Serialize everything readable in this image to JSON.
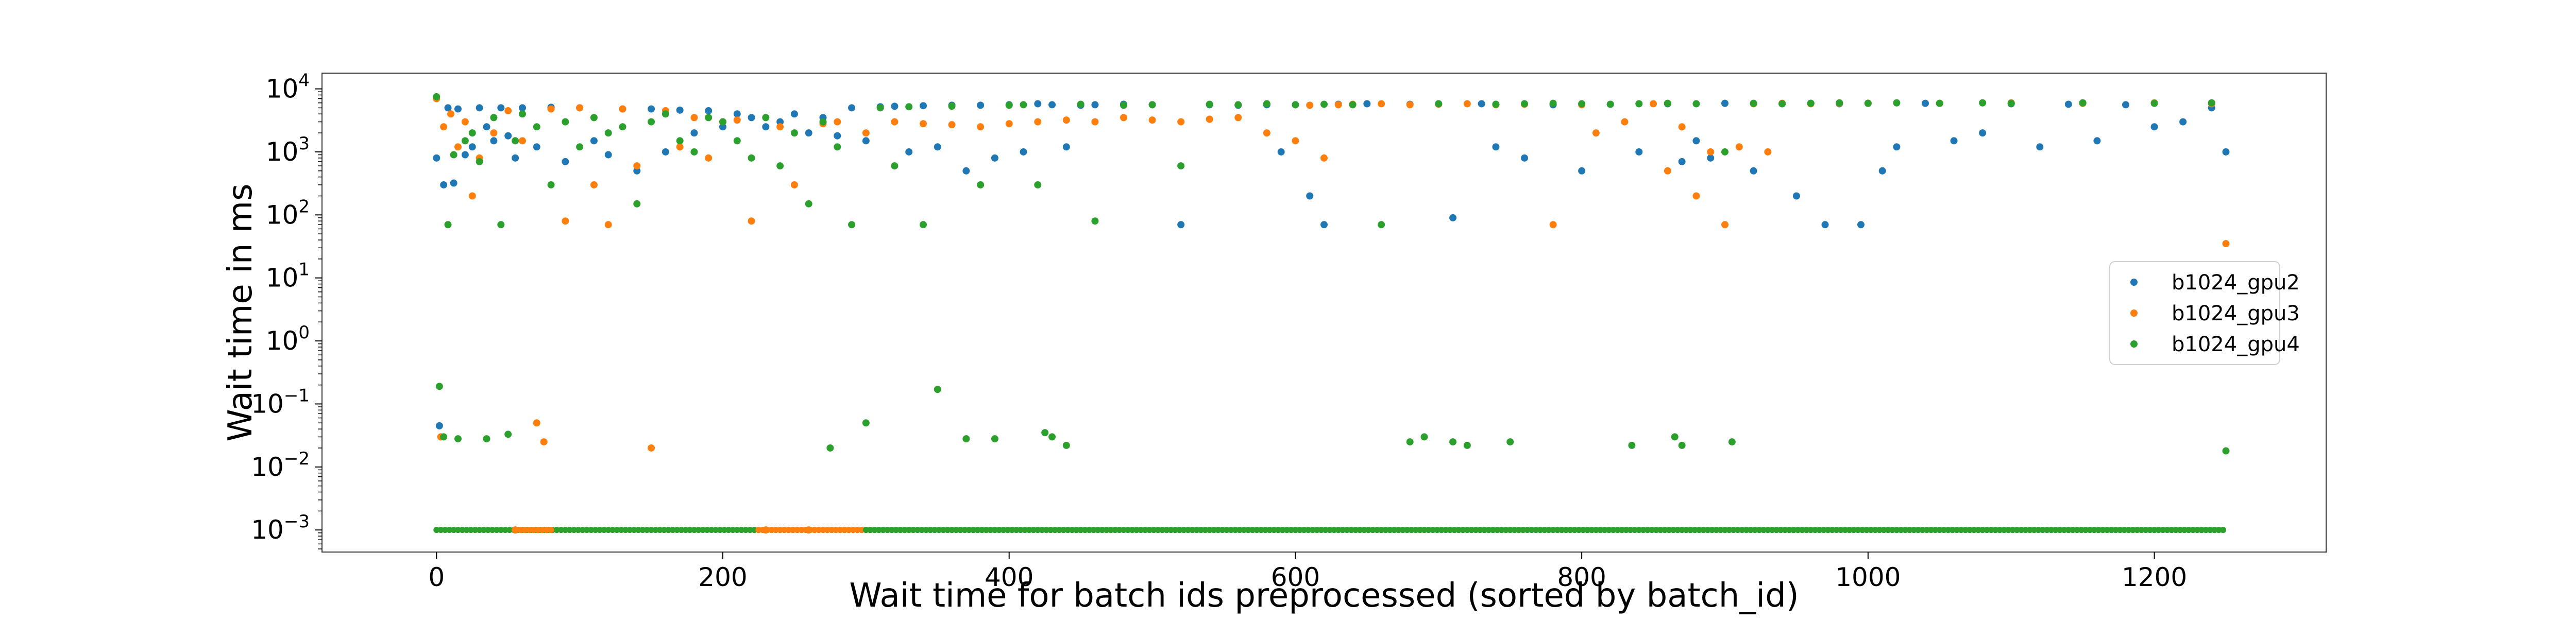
{
  "chart_data": {
    "type": "scatter",
    "title": "",
    "xlabel": "Wait time for batch ids preprocessed (sorted by batch_id)",
    "ylabel": "Wait time in ms",
    "xlim": [
      -80,
      1320
    ],
    "ylim_log10": [
      -3.35,
      4.25
    ],
    "yscale": "log",
    "x_ticks": [
      {
        "value": 0,
        "label": "0"
      },
      {
        "value": 200,
        "label": "200"
      },
      {
        "value": 400,
        "label": "400"
      },
      {
        "value": 600,
        "label": "600"
      },
      {
        "value": 800,
        "label": "800"
      },
      {
        "value": 1000,
        "label": "1000"
      },
      {
        "value": 1200,
        "label": "1200"
      }
    ],
    "y_ticks": [
      {
        "exp": 4,
        "base": "10",
        "sup": "4"
      },
      {
        "exp": 3,
        "base": "10",
        "sup": "3"
      },
      {
        "exp": 2,
        "base": "10",
        "sup": "2"
      },
      {
        "exp": 1,
        "base": "10",
        "sup": "1"
      },
      {
        "exp": 0,
        "base": "10",
        "sup": "0"
      },
      {
        "exp": -1,
        "base": "10",
        "sup": "−1"
      },
      {
        "exp": -2,
        "base": "10",
        "sup": "−2"
      },
      {
        "exp": -3,
        "base": "10",
        "sup": "−3"
      }
    ],
    "grid": false,
    "legend_position": "right",
    "series": [
      {
        "name": "b1024_gpu2",
        "color": "#1f77b4",
        "points": [
          [
            0,
            800
          ],
          [
            2,
            0.045
          ],
          [
            5,
            300
          ],
          [
            8,
            5000
          ],
          [
            12,
            320
          ],
          [
            15,
            4800
          ],
          [
            20,
            900
          ],
          [
            25,
            1200
          ],
          [
            30,
            5000
          ],
          [
            35,
            2500
          ],
          [
            40,
            1500
          ],
          [
            45,
            5000
          ],
          [
            50,
            1800
          ],
          [
            55,
            800
          ],
          [
            60,
            5000
          ],
          [
            70,
            1200
          ],
          [
            80,
            5100
          ],
          [
            90,
            700
          ],
          [
            100,
            5000
          ],
          [
            110,
            1500
          ],
          [
            120,
            900
          ],
          [
            130,
            4800
          ],
          [
            140,
            500
          ],
          [
            150,
            4800
          ],
          [
            160,
            1000
          ],
          [
            170,
            4600
          ],
          [
            180,
            2000
          ],
          [
            190,
            4500
          ],
          [
            200,
            2500
          ],
          [
            210,
            4000
          ],
          [
            220,
            3500
          ],
          [
            230,
            2500
          ],
          [
            240,
            3000
          ],
          [
            250,
            4000
          ],
          [
            260,
            2000
          ],
          [
            270,
            3500
          ],
          [
            280,
            1800
          ],
          [
            290,
            5000
          ],
          [
            300,
            1500
          ],
          [
            310,
            5200
          ],
          [
            320,
            5300
          ],
          [
            330,
            1000
          ],
          [
            340,
            5400
          ],
          [
            350,
            1200
          ],
          [
            360,
            5500
          ],
          [
            370,
            500
          ],
          [
            380,
            5500
          ],
          [
            390,
            800
          ],
          [
            400,
            5600
          ],
          [
            410,
            1000
          ],
          [
            420,
            5800
          ],
          [
            430,
            5600
          ],
          [
            440,
            1200
          ],
          [
            450,
            5500
          ],
          [
            460,
            5600
          ],
          [
            480,
            5700
          ],
          [
            500,
            5600
          ],
          [
            520,
            70
          ],
          [
            540,
            5600
          ],
          [
            560,
            5500
          ],
          [
            580,
            5600
          ],
          [
            590,
            1000
          ],
          [
            600,
            5600
          ],
          [
            610,
            200
          ],
          [
            620,
            70
          ],
          [
            630,
            5700
          ],
          [
            650,
            5800
          ],
          [
            680,
            5700
          ],
          [
            700,
            5800
          ],
          [
            710,
            90
          ],
          [
            730,
            5800
          ],
          [
            740,
            1200
          ],
          [
            760,
            800
          ],
          [
            780,
            5600
          ],
          [
            800,
            500
          ],
          [
            820,
            5700
          ],
          [
            840,
            1000
          ],
          [
            860,
            5800
          ],
          [
            870,
            700
          ],
          [
            880,
            1500
          ],
          [
            890,
            800
          ],
          [
            900,
            5900
          ],
          [
            920,
            500
          ],
          [
            940,
            5800
          ],
          [
            950,
            200
          ],
          [
            960,
            5900
          ],
          [
            970,
            70
          ],
          [
            980,
            5800
          ],
          [
            995,
            70
          ],
          [
            1000,
            5900
          ],
          [
            1010,
            500
          ],
          [
            1020,
            1200
          ],
          [
            1040,
            5900
          ],
          [
            1060,
            1500
          ],
          [
            1080,
            2000
          ],
          [
            1100,
            5800
          ],
          [
            1120,
            1200
          ],
          [
            1140,
            5700
          ],
          [
            1160,
            1500
          ],
          [
            1180,
            5600
          ],
          [
            1200,
            2500
          ],
          [
            1220,
            3000
          ],
          [
            1240,
            5000
          ],
          [
            1250,
            1000
          ]
        ]
      },
      {
        "name": "b1024_gpu3",
        "color": "#ff7f0e",
        "points": [
          [
            0,
            7000
          ],
          [
            3,
            0.03
          ],
          [
            5,
            2500
          ],
          [
            10,
            4000
          ],
          [
            15,
            1200
          ],
          [
            20,
            3000
          ],
          [
            25,
            200
          ],
          [
            30,
            800
          ],
          [
            40,
            2000
          ],
          [
            50,
            4500
          ],
          [
            55,
            0.001
          ],
          [
            60,
            1500
          ],
          [
            70,
            0.05
          ],
          [
            75,
            0.025
          ],
          [
            80,
            4800
          ],
          [
            90,
            80
          ],
          [
            100,
            5000
          ],
          [
            110,
            300
          ],
          [
            120,
            70
          ],
          [
            130,
            4800
          ],
          [
            140,
            600
          ],
          [
            150,
            0.02
          ],
          [
            160,
            4500
          ],
          [
            170,
            1200
          ],
          [
            180,
            3500
          ],
          [
            190,
            800
          ],
          [
            200,
            3000
          ],
          [
            210,
            3200
          ],
          [
            220,
            80
          ],
          [
            230,
            0.001
          ],
          [
            240,
            2500
          ],
          [
            250,
            300
          ],
          [
            260,
            0.001
          ],
          [
            270,
            2800
          ],
          [
            280,
            3000
          ],
          [
            300,
            2000
          ],
          [
            320,
            3000
          ],
          [
            340,
            2800
          ],
          [
            360,
            2700
          ],
          [
            380,
            2500
          ],
          [
            400,
            2800
          ],
          [
            420,
            3000
          ],
          [
            440,
            3200
          ],
          [
            460,
            3000
          ],
          [
            480,
            3500
          ],
          [
            500,
            3200
          ],
          [
            520,
            3000
          ],
          [
            540,
            3300
          ],
          [
            560,
            3500
          ],
          [
            580,
            2000
          ],
          [
            600,
            1500
          ],
          [
            610,
            5500
          ],
          [
            620,
            800
          ],
          [
            630,
            5600
          ],
          [
            640,
            5700
          ],
          [
            660,
            5800
          ],
          [
            680,
            5600
          ],
          [
            700,
            5700
          ],
          [
            720,
            5800
          ],
          [
            740,
            5600
          ],
          [
            760,
            5700
          ],
          [
            780,
            70
          ],
          [
            800,
            5600
          ],
          [
            810,
            2000
          ],
          [
            830,
            3000
          ],
          [
            850,
            5800
          ],
          [
            860,
            500
          ],
          [
            870,
            2500
          ],
          [
            880,
            200
          ],
          [
            890,
            1000
          ],
          [
            900,
            70
          ],
          [
            910,
            1200
          ],
          [
            920,
            5800
          ],
          [
            930,
            1000
          ],
          [
            940,
            5900
          ],
          [
            960,
            5800
          ],
          [
            980,
            5900
          ],
          [
            1000,
            5900
          ],
          [
            1050,
            5900
          ],
          [
            1100,
            6000
          ],
          [
            1150,
            5900
          ],
          [
            1200,
            6000
          ],
          [
            1240,
            5800
          ],
          [
            1250,
            35
          ]
        ]
      },
      {
        "name": "b1024_gpu4",
        "color": "#2ca02c",
        "points": [
          [
            0,
            7500
          ],
          [
            2,
            0.19
          ],
          [
            5,
            0.03
          ],
          [
            8,
            70
          ],
          [
            12,
            900
          ],
          [
            15,
            0.028
          ],
          [
            20,
            1500
          ],
          [
            25,
            2000
          ],
          [
            30,
            700
          ],
          [
            35,
            0.028
          ],
          [
            40,
            3500
          ],
          [
            45,
            70
          ],
          [
            50,
            0.033
          ],
          [
            55,
            1500
          ],
          [
            60,
            4000
          ],
          [
            70,
            2500
          ],
          [
            80,
            300
          ],
          [
            90,
            3000
          ],
          [
            100,
            1200
          ],
          [
            110,
            3500
          ],
          [
            120,
            2000
          ],
          [
            130,
            2500
          ],
          [
            140,
            150
          ],
          [
            150,
            3000
          ],
          [
            160,
            4000
          ],
          [
            170,
            1500
          ],
          [
            180,
            1000
          ],
          [
            190,
            3500
          ],
          [
            200,
            3000
          ],
          [
            210,
            1500
          ],
          [
            220,
            800
          ],
          [
            230,
            3500
          ],
          [
            240,
            600
          ],
          [
            250,
            2000
          ],
          [
            260,
            150
          ],
          [
            270,
            3000
          ],
          [
            275,
            0.02
          ],
          [
            280,
            1200
          ],
          [
            290,
            70
          ],
          [
            300,
            0.05
          ],
          [
            310,
            5000
          ],
          [
            320,
            600
          ],
          [
            330,
            5200
          ],
          [
            340,
            70
          ],
          [
            350,
            0.17
          ],
          [
            360,
            5300
          ],
          [
            370,
            0.028
          ],
          [
            380,
            300
          ],
          [
            390,
            0.028
          ],
          [
            400,
            5500
          ],
          [
            410,
            5600
          ],
          [
            420,
            300
          ],
          [
            425,
            0.035
          ],
          [
            430,
            0.03
          ],
          [
            440,
            0.022
          ],
          [
            450,
            5700
          ],
          [
            460,
            80
          ],
          [
            480,
            5500
          ],
          [
            500,
            5600
          ],
          [
            520,
            600
          ],
          [
            540,
            5700
          ],
          [
            560,
            5600
          ],
          [
            580,
            5800
          ],
          [
            600,
            5600
          ],
          [
            620,
            5700
          ],
          [
            640,
            5600
          ],
          [
            660,
            70
          ],
          [
            680,
            0.025
          ],
          [
            690,
            0.03
          ],
          [
            700,
            5800
          ],
          [
            710,
            0.025
          ],
          [
            720,
            0.022
          ],
          [
            740,
            5700
          ],
          [
            750,
            0.025
          ],
          [
            760,
            5800
          ],
          [
            780,
            5900
          ],
          [
            800,
            5800
          ],
          [
            820,
            5700
          ],
          [
            835,
            0.022
          ],
          [
            840,
            5800
          ],
          [
            860,
            5900
          ],
          [
            865,
            0.03
          ],
          [
            870,
            0.022
          ],
          [
            880,
            5800
          ],
          [
            900,
            1000
          ],
          [
            905,
            0.025
          ],
          [
            920,
            5900
          ],
          [
            940,
            5800
          ],
          [
            960,
            5900
          ],
          [
            980,
            6000
          ],
          [
            1000,
            5900
          ],
          [
            1020,
            6000
          ],
          [
            1050,
            5900
          ],
          [
            1080,
            6000
          ],
          [
            1100,
            5900
          ],
          [
            1150,
            6000
          ],
          [
            1200,
            5900
          ],
          [
            1240,
            6000
          ],
          [
            1250,
            0.018
          ]
        ]
      }
    ],
    "floor_bands": [
      {
        "series": "b1024_gpu4",
        "x_start": 0,
        "x_end": 1250,
        "value": 0.001
      },
      {
        "series": "b1024_gpu3",
        "x_start": 56,
        "x_end": 80,
        "value": 0.001
      },
      {
        "series": "b1024_gpu3",
        "x_start": 225,
        "x_end": 300,
        "value": 0.001
      },
      {
        "series": "b1024_gpu4",
        "x_start": 300,
        "x_end": 1250,
        "value": 0.001
      }
    ]
  }
}
